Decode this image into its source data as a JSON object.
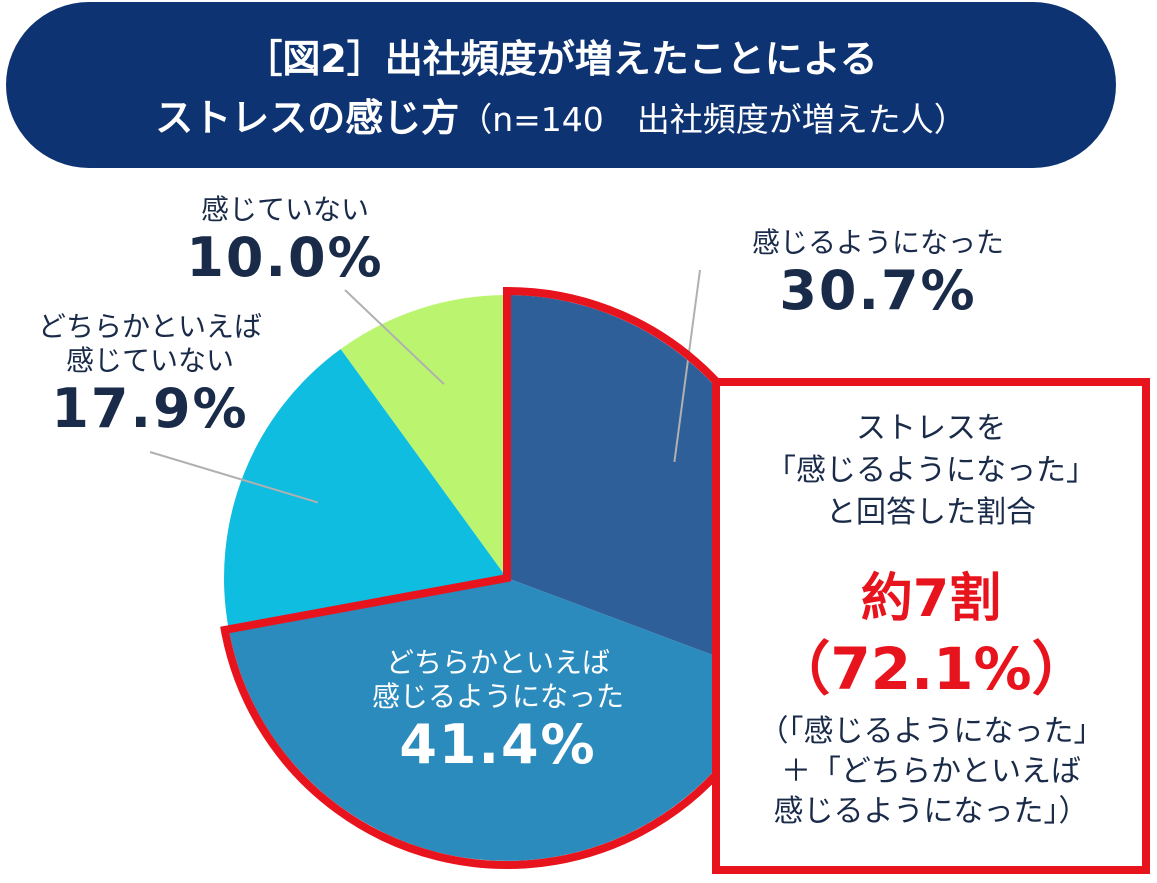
{
  "title": {
    "line1": "［図2］出社頻度が増えたことによる",
    "line2_main": "ストレスの感じ方",
    "line2_sub": "（n=140　出社頻度が増えた人）"
  },
  "chart_data": {
    "type": "pie",
    "start_angle_deg": 0,
    "direction": "clockwise",
    "slices": [
      {
        "label": "感じるようになった",
        "value": 30.7,
        "value_label": "30.7%",
        "color": "#2e5f98"
      },
      {
        "label": "どちらかといえば感じるようになった",
        "value": 41.4,
        "value_label": "41.4%",
        "color": "#2b8bbd"
      },
      {
        "label": "どちらかといえば感じていない",
        "value": 17.9,
        "value_label": "17.9%",
        "color": "#0fbde0"
      },
      {
        "label": "感じていない",
        "value": 10.0,
        "value_label": "10.0%",
        "color": "#bbf56f"
      }
    ],
    "highlight_color": "#e8141d"
  },
  "labels": {
    "s1_name": "感じるようになった",
    "s2_line1": "どちらかといえば",
    "s2_line2": "感じるようになった",
    "s3_line1": "どちらかといえば",
    "s3_line2": "感じていない",
    "s4_name": "感じていない"
  },
  "callout": {
    "q1": "ストレスを",
    "q2": "「感じるようになった」",
    "q3": "と回答した割合",
    "big": "約7割",
    "pct": "（72.1%）",
    "note1": "（「感じるようになった」",
    "note2": "＋「どちらかといえば",
    "note3": "感じるようになった」）"
  }
}
